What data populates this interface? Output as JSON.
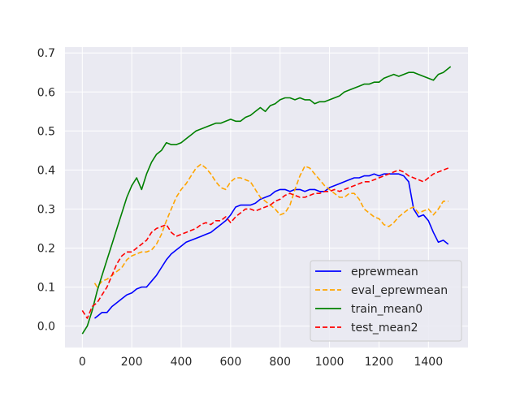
{
  "chart_data": {
    "type": "line",
    "title": "",
    "xlabel": "",
    "ylabel": "",
    "xlim": [
      -70,
      1560
    ],
    "ylim": [
      -0.055,
      0.715
    ],
    "x_ticks": [
      0,
      200,
      400,
      600,
      800,
      1000,
      1200,
      1400
    ],
    "x_tick_labels": [
      "0",
      "200",
      "400",
      "600",
      "800",
      "1000",
      "1200",
      "1400"
    ],
    "y_ticks": [
      0.0,
      0.1,
      0.2,
      0.3,
      0.4,
      0.5,
      0.6,
      0.7
    ],
    "y_tick_labels": [
      "0.0",
      "0.1",
      "0.2",
      "0.3",
      "0.4",
      "0.5",
      "0.6",
      "0.7"
    ],
    "grid": true,
    "legend_position": "lower-right",
    "background_color": "#eaeaf2",
    "series": [
      {
        "name": "eprewmean",
        "color": "#0000ff",
        "dash": "solid",
        "x": [
          50,
          60,
          80,
          100,
          120,
          140,
          160,
          180,
          200,
          220,
          240,
          260,
          280,
          300,
          320,
          340,
          360,
          380,
          400,
          420,
          440,
          460,
          480,
          500,
          520,
          540,
          560,
          580,
          600,
          620,
          640,
          660,
          680,
          700,
          720,
          740,
          760,
          780,
          800,
          820,
          840,
          860,
          880,
          900,
          920,
          940,
          960,
          980,
          1000,
          1020,
          1040,
          1060,
          1080,
          1100,
          1120,
          1140,
          1160,
          1180,
          1200,
          1220,
          1240,
          1260,
          1280,
          1300,
          1320,
          1340,
          1360,
          1380,
          1400,
          1420,
          1440,
          1460,
          1480
        ],
        "y": [
          0.02,
          0.025,
          0.035,
          0.035,
          0.05,
          0.06,
          0.07,
          0.08,
          0.085,
          0.095,
          0.1,
          0.1,
          0.115,
          0.13,
          0.15,
          0.17,
          0.185,
          0.195,
          0.205,
          0.215,
          0.22,
          0.225,
          0.23,
          0.235,
          0.24,
          0.25,
          0.26,
          0.27,
          0.285,
          0.305,
          0.31,
          0.31,
          0.31,
          0.315,
          0.325,
          0.33,
          0.335,
          0.345,
          0.35,
          0.35,
          0.345,
          0.35,
          0.35,
          0.345,
          0.35,
          0.35,
          0.345,
          0.345,
          0.355,
          0.36,
          0.365,
          0.37,
          0.375,
          0.38,
          0.38,
          0.385,
          0.385,
          0.39,
          0.385,
          0.39,
          0.39,
          0.39,
          0.39,
          0.385,
          0.37,
          0.3,
          0.28,
          0.285,
          0.27,
          0.24,
          0.215,
          0.22,
          0.21
        ]
      },
      {
        "name": "eval_eprewmean",
        "color": "#ffa500",
        "dash": "dashed",
        "x": [
          50,
          60,
          80,
          100,
          120,
          140,
          160,
          180,
          200,
          220,
          240,
          260,
          280,
          300,
          320,
          340,
          360,
          380,
          400,
          420,
          440,
          460,
          480,
          500,
          520,
          540,
          560,
          580,
          600,
          620,
          640,
          660,
          680,
          700,
          720,
          740,
          760,
          780,
          800,
          820,
          840,
          860,
          880,
          900,
          920,
          940,
          960,
          980,
          1000,
          1020,
          1040,
          1060,
          1080,
          1100,
          1120,
          1140,
          1160,
          1180,
          1200,
          1220,
          1240,
          1260,
          1280,
          1300,
          1320,
          1340,
          1360,
          1380,
          1400,
          1420,
          1440,
          1460,
          1480
        ],
        "y": [
          0.11,
          0.1,
          0.115,
          0.12,
          0.13,
          0.14,
          0.15,
          0.17,
          0.18,
          0.185,
          0.19,
          0.19,
          0.195,
          0.21,
          0.235,
          0.27,
          0.3,
          0.33,
          0.35,
          0.365,
          0.385,
          0.405,
          0.415,
          0.405,
          0.39,
          0.37,
          0.355,
          0.35,
          0.37,
          0.38,
          0.38,
          0.375,
          0.37,
          0.35,
          0.33,
          0.32,
          0.31,
          0.3,
          0.285,
          0.29,
          0.31,
          0.35,
          0.385,
          0.41,
          0.405,
          0.39,
          0.375,
          0.36,
          0.35,
          0.34,
          0.33,
          0.33,
          0.34,
          0.34,
          0.325,
          0.3,
          0.29,
          0.28,
          0.275,
          0.26,
          0.255,
          0.265,
          0.28,
          0.29,
          0.3,
          0.305,
          0.29,
          0.295,
          0.3,
          0.285,
          0.3,
          0.32,
          0.32
        ]
      },
      {
        "name": "train_mean0",
        "color": "#008000",
        "dash": "solid",
        "x": [
          0,
          20,
          40,
          60,
          80,
          100,
          120,
          140,
          160,
          180,
          200,
          220,
          240,
          260,
          280,
          300,
          320,
          340,
          360,
          380,
          400,
          420,
          440,
          460,
          480,
          500,
          520,
          540,
          560,
          580,
          600,
          620,
          640,
          660,
          680,
          700,
          720,
          740,
          760,
          780,
          800,
          820,
          840,
          860,
          880,
          900,
          920,
          940,
          960,
          980,
          1000,
          1020,
          1040,
          1060,
          1080,
          1100,
          1120,
          1140,
          1160,
          1180,
          1200,
          1220,
          1240,
          1260,
          1280,
          1300,
          1320,
          1340,
          1360,
          1380,
          1400,
          1420,
          1440,
          1460,
          1480,
          1490
        ],
        "y": [
          -0.02,
          0.0,
          0.04,
          0.09,
          0.13,
          0.17,
          0.21,
          0.25,
          0.29,
          0.33,
          0.36,
          0.38,
          0.35,
          0.39,
          0.42,
          0.44,
          0.45,
          0.47,
          0.465,
          0.465,
          0.47,
          0.48,
          0.49,
          0.5,
          0.505,
          0.51,
          0.515,
          0.52,
          0.52,
          0.525,
          0.53,
          0.525,
          0.525,
          0.535,
          0.54,
          0.55,
          0.56,
          0.55,
          0.565,
          0.57,
          0.58,
          0.585,
          0.585,
          0.58,
          0.585,
          0.58,
          0.58,
          0.57,
          0.575,
          0.575,
          0.58,
          0.585,
          0.59,
          0.6,
          0.605,
          0.61,
          0.615,
          0.62,
          0.62,
          0.625,
          0.625,
          0.635,
          0.64,
          0.645,
          0.64,
          0.645,
          0.65,
          0.65,
          0.645,
          0.64,
          0.635,
          0.63,
          0.645,
          0.65,
          0.66,
          0.665
        ]
      },
      {
        "name": "test_mean2",
        "color": "#ff0000",
        "dash": "dashed",
        "x": [
          0,
          20,
          40,
          60,
          80,
          100,
          120,
          140,
          160,
          180,
          200,
          220,
          240,
          260,
          280,
          300,
          320,
          340,
          360,
          380,
          400,
          420,
          440,
          460,
          480,
          500,
          520,
          540,
          560,
          580,
          600,
          620,
          640,
          660,
          680,
          700,
          720,
          740,
          760,
          780,
          800,
          820,
          840,
          860,
          880,
          900,
          920,
          940,
          960,
          980,
          1000,
          1020,
          1040,
          1060,
          1080,
          1100,
          1120,
          1140,
          1160,
          1180,
          1200,
          1220,
          1240,
          1260,
          1280,
          1300,
          1320,
          1340,
          1360,
          1380,
          1400,
          1420,
          1440,
          1460,
          1480
        ],
        "y": [
          0.04,
          0.02,
          0.05,
          0.06,
          0.08,
          0.1,
          0.13,
          0.16,
          0.18,
          0.19,
          0.19,
          0.2,
          0.21,
          0.22,
          0.24,
          0.25,
          0.255,
          0.26,
          0.24,
          0.23,
          0.235,
          0.24,
          0.245,
          0.25,
          0.26,
          0.265,
          0.26,
          0.27,
          0.27,
          0.28,
          0.265,
          0.28,
          0.29,
          0.3,
          0.3,
          0.295,
          0.3,
          0.305,
          0.31,
          0.32,
          0.325,
          0.335,
          0.34,
          0.335,
          0.33,
          0.33,
          0.335,
          0.34,
          0.34,
          0.345,
          0.345,
          0.35,
          0.345,
          0.35,
          0.355,
          0.36,
          0.365,
          0.37,
          0.37,
          0.375,
          0.38,
          0.385,
          0.39,
          0.395,
          0.4,
          0.395,
          0.385,
          0.38,
          0.375,
          0.37,
          0.38,
          0.39,
          0.395,
          0.4,
          0.405
        ]
      }
    ]
  }
}
